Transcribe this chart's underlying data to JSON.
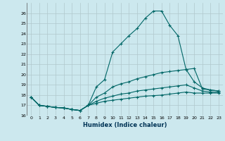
{
  "xlabel": "Humidex (Indice chaleur)",
  "bg_color": "#cce8ee",
  "grid_color": "#b0c8cc",
  "line_color": "#006666",
  "xlim": [
    -0.5,
    23.5
  ],
  "ylim": [
    16,
    27
  ],
  "xticks": [
    0,
    1,
    2,
    3,
    4,
    5,
    6,
    7,
    8,
    9,
    10,
    11,
    12,
    13,
    14,
    15,
    16,
    17,
    18,
    19,
    20,
    21,
    22,
    23
  ],
  "yticks": [
    16,
    17,
    18,
    19,
    20,
    21,
    22,
    23,
    24,
    25,
    26
  ],
  "series": [
    [
      17.8,
      17.0,
      16.9,
      16.8,
      16.75,
      16.6,
      16.5,
      17.0,
      18.8,
      19.5,
      22.2,
      23.0,
      23.8,
      24.5,
      25.5,
      26.2,
      26.2,
      24.8,
      23.8,
      20.5,
      20.6,
      18.6,
      18.5,
      18.4
    ],
    [
      17.8,
      17.0,
      16.9,
      16.8,
      16.75,
      16.6,
      16.5,
      17.0,
      17.8,
      18.2,
      18.8,
      19.1,
      19.3,
      19.6,
      19.8,
      20.0,
      20.2,
      20.3,
      20.4,
      20.5,
      19.3,
      18.7,
      18.5,
      18.4
    ],
    [
      17.8,
      17.0,
      16.9,
      16.8,
      16.75,
      16.6,
      16.5,
      17.0,
      17.4,
      17.7,
      17.9,
      18.1,
      18.2,
      18.4,
      18.5,
      18.6,
      18.7,
      18.8,
      18.9,
      19.0,
      18.7,
      18.4,
      18.3,
      18.3
    ],
    [
      17.8,
      17.0,
      16.9,
      16.8,
      16.75,
      16.6,
      16.5,
      17.0,
      17.2,
      17.4,
      17.5,
      17.6,
      17.7,
      17.8,
      17.9,
      17.95,
      18.0,
      18.1,
      18.2,
      18.3,
      18.2,
      18.2,
      18.2,
      18.2
    ]
  ]
}
